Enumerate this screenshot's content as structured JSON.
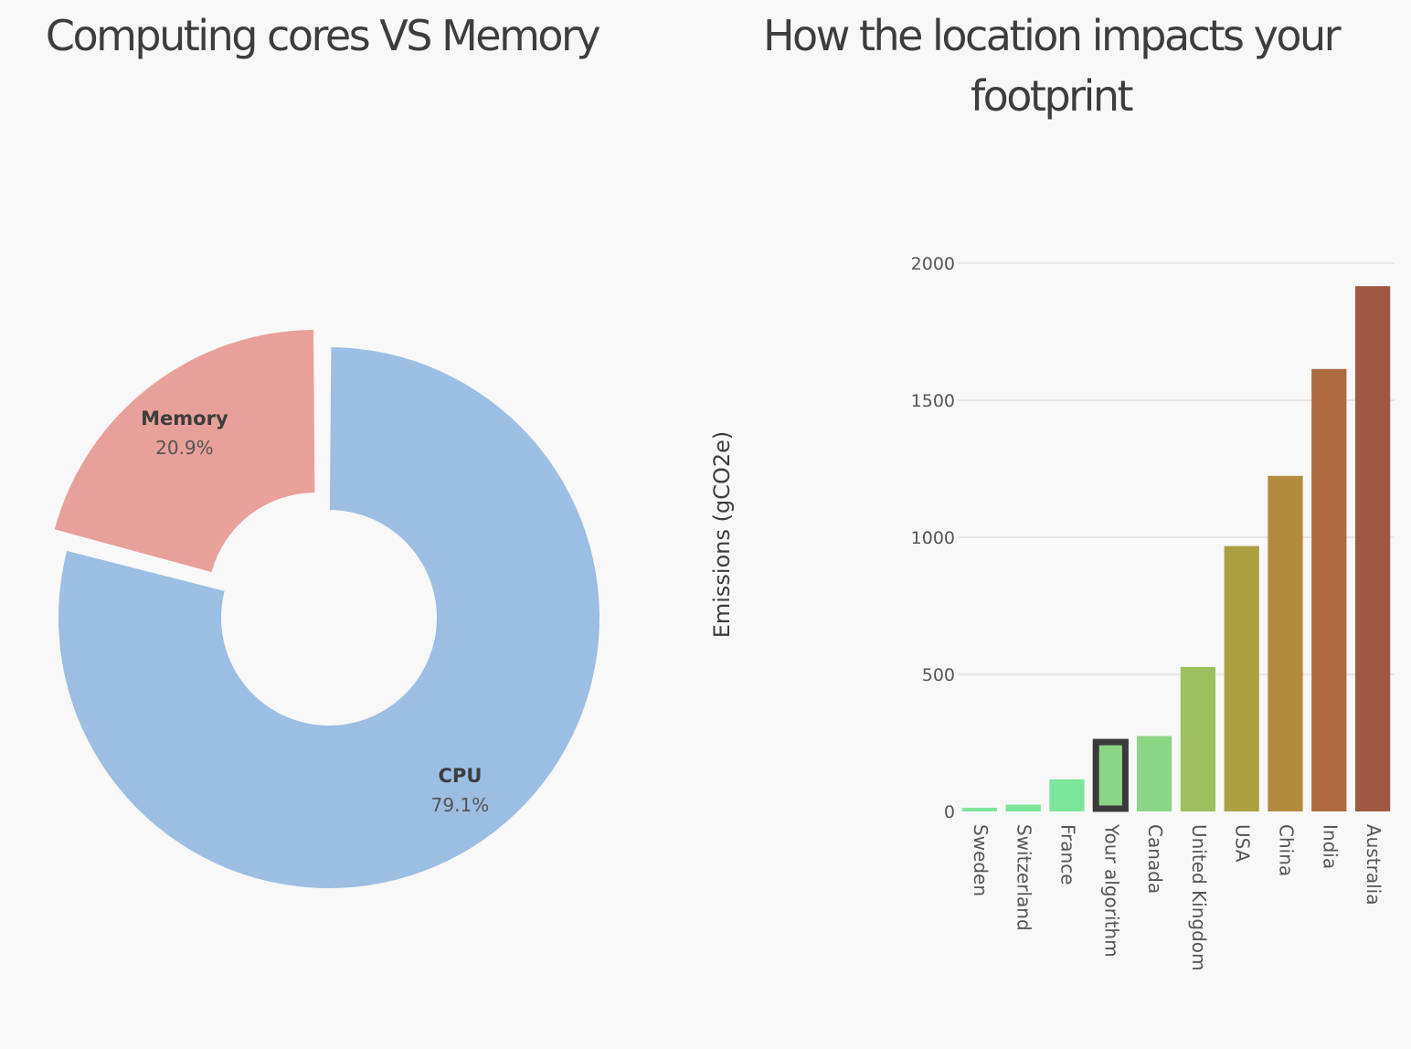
{
  "chart_data": [
    {
      "type": "pie",
      "title": "Computing cores VS Memory",
      "slices": [
        {
          "label": "CPU",
          "value": 79.1,
          "display": "79.1%",
          "color": "#9bbee2"
        },
        {
          "label": "Memory",
          "value": 20.9,
          "display": "20.9%",
          "color": "#e8a09a",
          "pulled": true
        }
      ]
    },
    {
      "type": "bar",
      "title": "How the location impacts your footprint",
      "xlabel": "",
      "ylabel": "Emissions (gCO2e)",
      "ylim": [
        0,
        2000
      ],
      "yticks": [
        0,
        500,
        1000,
        1500,
        2000
      ],
      "grid": true,
      "categories": [
        "Sweden",
        "Switzerland",
        "France",
        "Your algorithm",
        "Canada",
        "United Kingdom",
        "USA",
        "China",
        "India",
        "Australia"
      ],
      "values": [
        13,
        25,
        117,
        263,
        275,
        527,
        968,
        1224,
        1614,
        1916
      ],
      "colors": [
        "#7de49b",
        "#7de49b",
        "#7de49b",
        "#8bd685",
        "#8bd685",
        "#9dbf5e",
        "#aba042",
        "#b28b3f",
        "#ad6b3f",
        "#9e5844"
      ],
      "highlight": "Your algorithm",
      "highlight_outline": "#3a3a3a"
    }
  ]
}
